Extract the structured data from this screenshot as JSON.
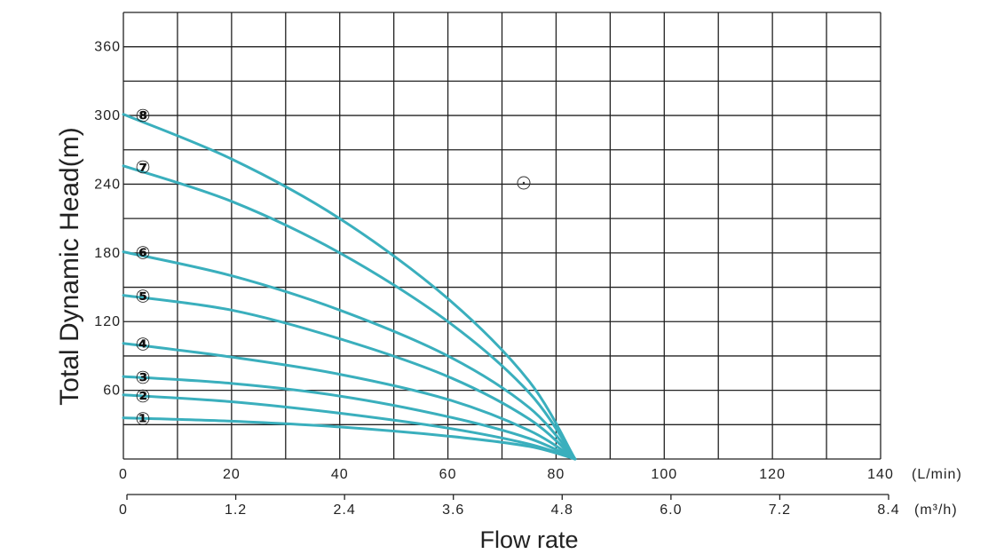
{
  "chart_data": {
    "type": "line",
    "title": "",
    "xlabel": "Flow rate",
    "ylabel": "Total Dynamic Head(m)",
    "xlim": [
      0,
      140
    ],
    "ylim": [
      0,
      390
    ],
    "x_unit": "(L/min)",
    "x2_unit": "(m³/h)",
    "x_ticks": [
      "0",
      "20",
      "40",
      "60",
      "80",
      "100",
      "120",
      "140"
    ],
    "x_tick_values": [
      0,
      20,
      40,
      60,
      80,
      100,
      120,
      140
    ],
    "x2_ticks": [
      "0",
      "1.2",
      "2.4",
      "3.6",
      "4.8",
      "6.0",
      "7.2",
      "8.4"
    ],
    "y_ticks": [
      "60",
      "120",
      "180",
      "240",
      "300",
      "360"
    ],
    "y_tick_values": [
      60,
      120,
      180,
      240,
      300,
      360
    ],
    "grid": true,
    "line_color": "#3aafbd",
    "series": [
      {
        "name": "①",
        "x": [
          0,
          20,
          40,
          60,
          75,
          83.5
        ],
        "y": [
          36,
          33,
          28,
          20,
          11,
          0
        ]
      },
      {
        "name": "②",
        "x": [
          0,
          20,
          40,
          60,
          75,
          83.5
        ],
        "y": [
          56,
          50,
          40,
          27,
          13,
          0
        ]
      },
      {
        "name": "③",
        "x": [
          0,
          20,
          40,
          60,
          75,
          83.5
        ],
        "y": [
          72,
          66,
          55,
          37,
          18,
          0
        ]
      },
      {
        "name": "④",
        "x": [
          0,
          20,
          40,
          60,
          75,
          83.5
        ],
        "y": [
          101,
          89,
          74,
          52,
          25,
          0
        ]
      },
      {
        "name": "⑤",
        "x": [
          0,
          20,
          40,
          60,
          75,
          83.5
        ],
        "y": [
          143,
          130,
          105,
          72,
          35,
          0
        ]
      },
      {
        "name": "⑥",
        "x": [
          0,
          20,
          40,
          60,
          75,
          83.5
        ],
        "y": [
          181,
          160,
          130,
          90,
          45,
          0
        ]
      },
      {
        "name": "⑦",
        "x": [
          0,
          20,
          40,
          60,
          75,
          83.5
        ],
        "y": [
          256,
          225,
          180,
          120,
          58,
          0
        ]
      },
      {
        "name": "⑧",
        "x": [
          0,
          20,
          40,
          60,
          75,
          83.5
        ],
        "y": [
          301,
          262,
          210,
          140,
          68,
          0
        ]
      }
    ],
    "label_positions": [
      36,
      56,
      72,
      101,
      143,
      181,
      256,
      301
    ]
  }
}
